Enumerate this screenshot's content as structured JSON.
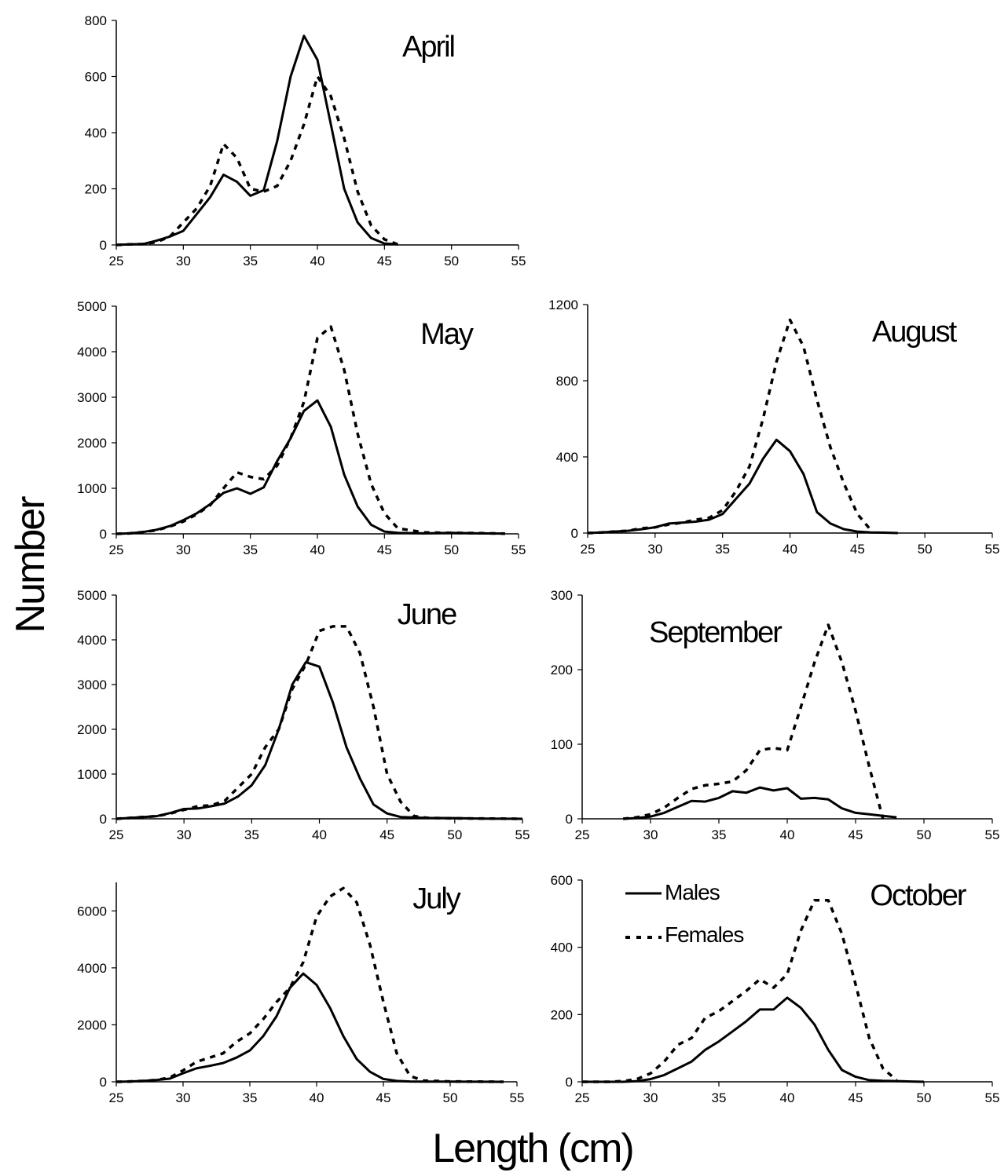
{
  "figure": {
    "ylabel": "Number",
    "xlabel": "Length (cm)"
  },
  "legend": {
    "males": "Males",
    "females": "Females"
  },
  "chart_data": [
    {
      "type": "line",
      "title": "April",
      "xlim": [
        25,
        55
      ],
      "xticks": [
        25,
        30,
        35,
        40,
        45,
        50,
        55
      ],
      "ylim": [
        0,
        800
      ],
      "yticks": [
        0,
        200,
        400,
        600,
        800
      ],
      "series": [
        {
          "name": "Males",
          "style": "solid",
          "x": [
            25,
            26,
            27,
            28,
            29,
            30,
            31,
            32,
            33,
            34,
            35,
            36,
            37,
            38,
            39,
            40,
            41,
            42,
            43,
            44,
            45,
            46
          ],
          "y": [
            0,
            2,
            3,
            15,
            30,
            50,
            110,
            170,
            250,
            225,
            175,
            195,
            370,
            600,
            745,
            660,
            430,
            200,
            80,
            25,
            5,
            2
          ]
        },
        {
          "name": "Females",
          "style": "dashed",
          "x": [
            25,
            26,
            27,
            28,
            29,
            30,
            31,
            32,
            33,
            34,
            35,
            36,
            37,
            38,
            39,
            40,
            41,
            42,
            43,
            44,
            45,
            46
          ],
          "y": [
            0,
            2,
            3,
            10,
            30,
            80,
            130,
            210,
            360,
            310,
            200,
            190,
            210,
            300,
            430,
            600,
            530,
            380,
            190,
            70,
            20,
            2
          ]
        }
      ]
    },
    {
      "type": "line",
      "title": "May",
      "xlim": [
        25,
        55
      ],
      "xticks": [
        25,
        30,
        35,
        40,
        45,
        50,
        55
      ],
      "ylim": [
        0,
        5000
      ],
      "yticks": [
        0,
        1000,
        2000,
        3000,
        4000,
        5000
      ],
      "series": [
        {
          "name": "Males",
          "style": "solid",
          "x": [
            25,
            26,
            27,
            28,
            29,
            30,
            31,
            32,
            33,
            34,
            35,
            36,
            37,
            38,
            39,
            40,
            41,
            42,
            43,
            44,
            45,
            46,
            48,
            50,
            52,
            54
          ],
          "y": [
            0,
            10,
            40,
            90,
            170,
            300,
            450,
            650,
            900,
            1000,
            880,
            1020,
            1600,
            2100,
            2700,
            2930,
            2350,
            1300,
            600,
            200,
            50,
            20,
            10,
            20,
            10,
            5
          ]
        },
        {
          "name": "Females",
          "style": "dashed",
          "x": [
            25,
            26,
            27,
            28,
            29,
            30,
            31,
            32,
            33,
            34,
            35,
            36,
            37,
            38,
            39,
            40,
            41,
            42,
            43,
            44,
            45,
            46,
            48,
            50,
            52,
            54
          ],
          "y": [
            0,
            10,
            40,
            80,
            160,
            270,
            430,
            630,
            1000,
            1350,
            1250,
            1200,
            1500,
            2100,
            2900,
            4300,
            4550,
            3600,
            2200,
            1100,
            450,
            120,
            30,
            20,
            15,
            5
          ]
        }
      ]
    },
    {
      "type": "line",
      "title": "June",
      "xlim": [
        25,
        55
      ],
      "xticks": [
        25,
        30,
        35,
        40,
        45,
        50,
        55
      ],
      "ylim": [
        0,
        5000
      ],
      "yticks": [
        0,
        1000,
        2000,
        3000,
        4000,
        5000
      ],
      "series": [
        {
          "name": "Males",
          "style": "solid",
          "x": [
            25,
            26,
            27,
            28,
            29,
            30,
            31,
            32,
            33,
            34,
            35,
            36,
            37,
            38,
            39,
            40,
            41,
            42,
            43,
            44,
            45,
            46,
            48,
            50,
            52,
            55
          ],
          "y": [
            0,
            20,
            40,
            60,
            130,
            220,
            230,
            280,
            340,
            500,
            750,
            1200,
            2000,
            3000,
            3500,
            3400,
            2600,
            1600,
            900,
            320,
            120,
            40,
            20,
            15,
            5,
            0
          ]
        },
        {
          "name": "Females",
          "style": "dashed",
          "x": [
            25,
            26,
            27,
            28,
            29,
            30,
            31,
            32,
            33,
            34,
            35,
            36,
            37,
            38,
            39,
            40,
            41,
            42,
            43,
            44,
            45,
            46,
            47,
            48,
            50,
            55
          ],
          "y": [
            0,
            20,
            40,
            60,
            120,
            200,
            280,
            300,
            400,
            700,
            1000,
            1600,
            2000,
            2900,
            3450,
            4200,
            4300,
            4300,
            3700,
            2500,
            1000,
            380,
            60,
            20,
            10,
            0
          ]
        }
      ]
    },
    {
      "type": "line",
      "title": "July",
      "xlim": [
        25,
        55
      ],
      "xticks": [
        25,
        30,
        35,
        40,
        45,
        50,
        55
      ],
      "ylim": [
        0,
        7000
      ],
      "yticks": [
        0,
        2000,
        4000,
        6000
      ],
      "series": [
        {
          "name": "Males",
          "style": "solid",
          "x": [
            25,
            26,
            27,
            28,
            29,
            30,
            31,
            32,
            33,
            34,
            35,
            36,
            37,
            38,
            39,
            40,
            41,
            42,
            43,
            44,
            45,
            46,
            47,
            48,
            50,
            54
          ],
          "y": [
            0,
            10,
            30,
            60,
            110,
            300,
            470,
            560,
            660,
            850,
            1100,
            1600,
            2300,
            3300,
            3800,
            3400,
            2600,
            1600,
            800,
            350,
            100,
            30,
            10,
            5,
            5,
            0
          ]
        },
        {
          "name": "Females",
          "style": "dashed",
          "x": [
            25,
            26,
            27,
            28,
            29,
            30,
            31,
            32,
            33,
            34,
            35,
            36,
            37,
            38,
            39,
            40,
            41,
            42,
            43,
            44,
            45,
            46,
            47,
            48,
            50,
            54
          ],
          "y": [
            0,
            10,
            30,
            60,
            150,
            400,
            700,
            850,
            1000,
            1400,
            1700,
            2200,
            2800,
            3300,
            4200,
            5800,
            6500,
            6800,
            6300,
            4800,
            2800,
            1000,
            200,
            40,
            10,
            0
          ]
        }
      ]
    },
    {
      "type": "line",
      "title": "August",
      "xlim": [
        25,
        55
      ],
      "xticks": [
        25,
        30,
        35,
        40,
        45,
        50,
        55
      ],
      "ylim": [
        0,
        1200
      ],
      "yticks": [
        0,
        400,
        800,
        1200
      ],
      "series": [
        {
          "name": "Males",
          "style": "solid",
          "x": [
            25,
            26,
            27,
            28,
            29,
            30,
            31,
            32,
            33,
            34,
            35,
            36,
            37,
            38,
            39,
            40,
            41,
            42,
            43,
            44,
            45,
            46,
            47,
            48
          ],
          "y": [
            0,
            3,
            8,
            12,
            20,
            30,
            50,
            55,
            60,
            70,
            100,
            180,
            260,
            390,
            490,
            430,
            310,
            110,
            50,
            20,
            8,
            3,
            2,
            0
          ]
        },
        {
          "name": "Females",
          "style": "dashed",
          "x": [
            25,
            26,
            27,
            28,
            29,
            30,
            31,
            32,
            33,
            34,
            35,
            36,
            37,
            38,
            39,
            40,
            41,
            42,
            43,
            44,
            45,
            46
          ],
          "y": [
            0,
            3,
            8,
            12,
            25,
            30,
            45,
            55,
            70,
            80,
            120,
            220,
            350,
            600,
            900,
            1120,
            980,
            700,
            450,
            260,
            100,
            15
          ]
        }
      ]
    },
    {
      "type": "line",
      "title": "September",
      "xlim": [
        25,
        55
      ],
      "xticks": [
        25,
        30,
        35,
        40,
        45,
        50,
        55
      ],
      "ylim": [
        0,
        300
      ],
      "yticks": [
        0,
        100,
        200,
        300
      ],
      "series": [
        {
          "name": "Males",
          "style": "solid",
          "x": [
            28,
            29,
            30,
            31,
            32,
            33,
            34,
            35,
            36,
            37,
            38,
            39,
            40,
            41,
            42,
            43,
            44,
            45,
            46,
            47,
            48
          ],
          "y": [
            0,
            1,
            3,
            8,
            16,
            24,
            23,
            28,
            37,
            35,
            42,
            38,
            41,
            27,
            28,
            26,
            14,
            8,
            6,
            4,
            2
          ]
        },
        {
          "name": "Females",
          "style": "dashed",
          "x": [
            28,
            29,
            30,
            31,
            32,
            33,
            34,
            35,
            36,
            37,
            38,
            39,
            40,
            41,
            42,
            43,
            44,
            45,
            46,
            47
          ],
          "y": [
            0,
            2,
            6,
            15,
            28,
            40,
            45,
            47,
            50,
            65,
            92,
            95,
            92,
            150,
            210,
            260,
            210,
            145,
            70,
            0
          ]
        }
      ]
    },
    {
      "type": "line",
      "title": "October",
      "xlim": [
        25,
        55
      ],
      "xticks": [
        25,
        30,
        35,
        40,
        45,
        50,
        55
      ],
      "ylim": [
        0,
        600
      ],
      "yticks": [
        0,
        200,
        400,
        600
      ],
      "series": [
        {
          "name": "Males",
          "style": "solid",
          "x": [
            25,
            26,
            27,
            28,
            29,
            30,
            31,
            32,
            33,
            34,
            35,
            36,
            37,
            38,
            39,
            40,
            41,
            42,
            43,
            44,
            45,
            46,
            47,
            48,
            49,
            50
          ],
          "y": [
            0,
            0,
            0,
            0,
            2,
            8,
            20,
            40,
            60,
            95,
            120,
            150,
            180,
            215,
            215,
            250,
            220,
            170,
            95,
            35,
            15,
            5,
            3,
            2,
            1,
            0
          ]
        },
        {
          "name": "Females",
          "style": "dashed",
          "x": [
            25,
            26,
            27,
            28,
            29,
            30,
            31,
            32,
            33,
            34,
            35,
            36,
            37,
            38,
            39,
            40,
            41,
            42,
            43,
            44,
            45,
            46,
            47,
            48
          ],
          "y": [
            0,
            0,
            0,
            2,
            8,
            25,
            60,
            110,
            130,
            190,
            210,
            240,
            270,
            305,
            280,
            320,
            450,
            540,
            540,
            440,
            290,
            130,
            40,
            5
          ]
        }
      ]
    }
  ]
}
